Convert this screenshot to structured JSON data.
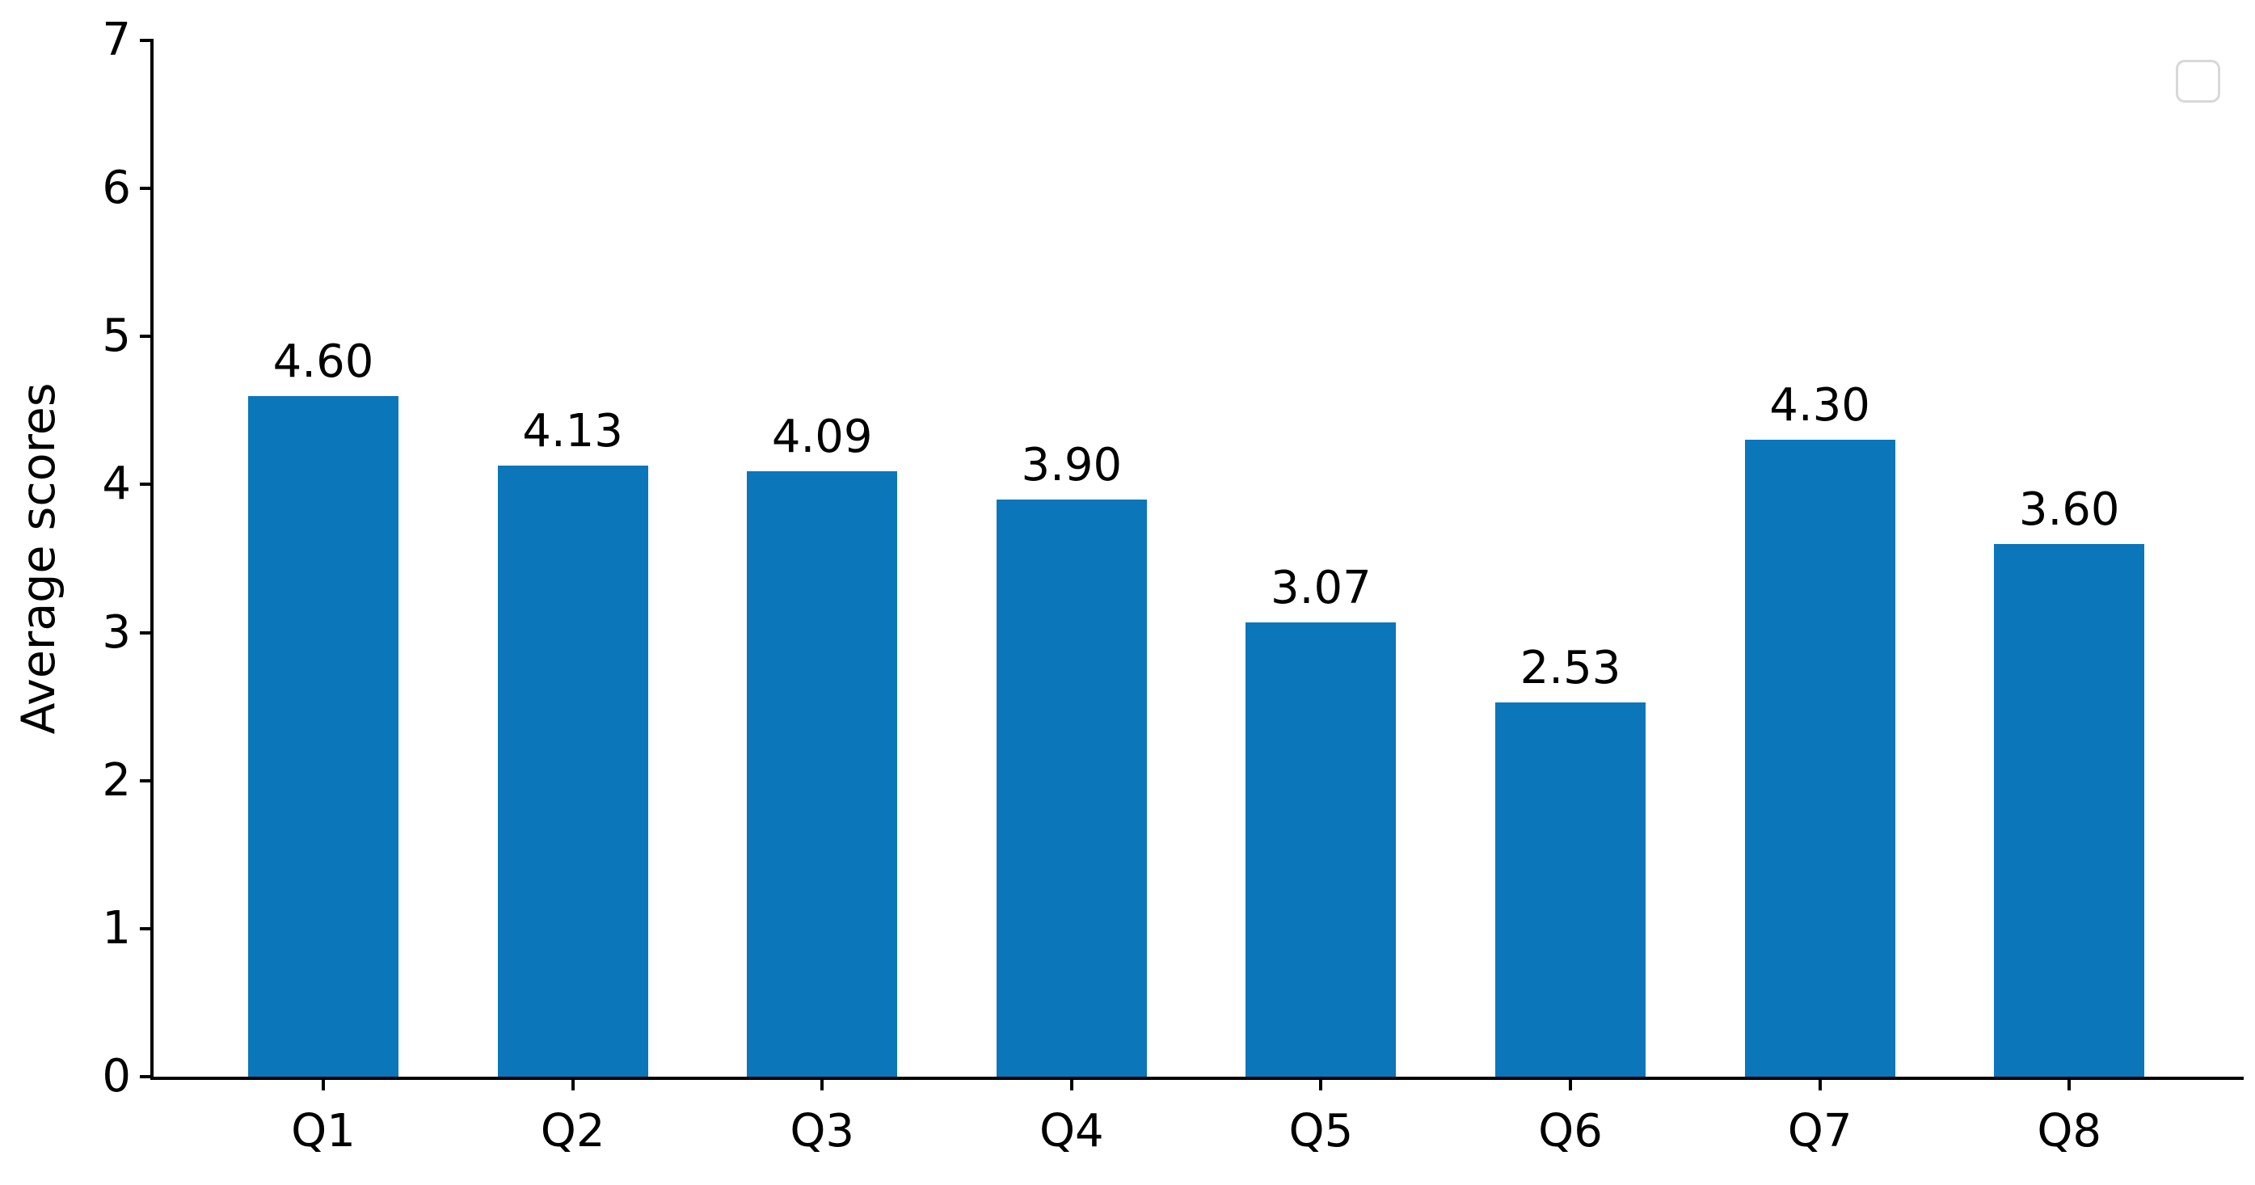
{
  "figure": {
    "background_color": "#ffffff",
    "axis_color": "#000000",
    "text_color": "#000000",
    "legend_border_color": "#d8d8d8"
  },
  "chart_data": {
    "type": "bar",
    "title": "",
    "xlabel": "",
    "ylabel": "Average scores",
    "categories": [
      "Q1",
      "Q2",
      "Q3",
      "Q4",
      "Q5",
      "Q6",
      "Q7",
      "Q8"
    ],
    "values": [
      4.6,
      4.13,
      4.09,
      3.9,
      3.07,
      2.53,
      4.3,
      3.6
    ],
    "value_labels": [
      "4.60",
      "4.13",
      "4.09",
      "3.90",
      "3.07",
      "2.53",
      "4.30",
      "3.60"
    ],
    "bar_color": "#0b76ba",
    "ylim": [
      0,
      7
    ],
    "yticks": [
      0,
      1,
      2,
      3,
      4,
      5,
      6,
      7
    ],
    "ytick_labels": [
      "0",
      "1",
      "2",
      "3",
      "4",
      "5",
      "6",
      "7"
    ],
    "grid": false,
    "legend": {
      "visible": true,
      "entries": [],
      "position": "upper-right"
    }
  }
}
